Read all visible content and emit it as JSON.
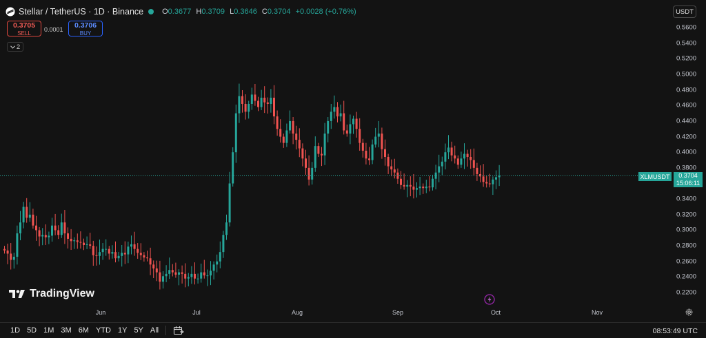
{
  "header": {
    "title": "Stellar / TetherUS · 1D · Binance",
    "ohlc": {
      "o_label": "O",
      "o_value": "0.3677",
      "h_label": "H",
      "h_value": "0.3709",
      "l_label": "L",
      "l_value": "0.3646",
      "c_label": "C",
      "c_value": "0.3704",
      "change": "+0.0028 (+0.76%)"
    }
  },
  "trade": {
    "sell_price": "0.3705",
    "sell_label": "SELL",
    "spread": "0.0001",
    "buy_price": "0.3706",
    "buy_label": "BUY"
  },
  "indicators_toggle": "2",
  "currency_button": "USDT",
  "price_axis": [
    "0.5600",
    "0.5400",
    "0.5200",
    "0.5000",
    "0.4800",
    "0.4600",
    "0.4400",
    "0.4200",
    "0.4000",
    "0.3800",
    "0.3400",
    "0.3200",
    "0.3000",
    "0.2800",
    "0.2600",
    "0.2400",
    "0.2200"
  ],
  "time_axis": [
    "Jun",
    "Jul",
    "Aug",
    "Sep",
    "Oct",
    "Nov"
  ],
  "last_price": {
    "symbol": "XLMUSDT",
    "price": "0.3704",
    "countdown": "15:06:11"
  },
  "watermark": "TradingView",
  "timeframes": [
    "1D",
    "5D",
    "1M",
    "3M",
    "6M",
    "YTD",
    "1Y",
    "5Y",
    "All"
  ],
  "clock": "08:53:49 UTC",
  "colors": {
    "up": "#26a69a",
    "down": "#ef5350",
    "background": "#131313"
  },
  "icons": {
    "calendar": "calendar-icon",
    "settings": "gear-icon",
    "event": "lightning-icon"
  },
  "chart_data": {
    "type": "candlestick",
    "symbol": "XLMUSDT",
    "interval": "1D",
    "ylim": [
      0.21,
      0.57
    ],
    "x_ticks": [
      "Jun",
      "Jul",
      "Aug",
      "Sep",
      "Oct",
      "Nov"
    ],
    "closes": [
      0.274,
      0.27,
      0.262,
      0.266,
      0.296,
      0.31,
      0.33,
      0.316,
      0.32,
      0.306,
      0.3,
      0.292,
      0.294,
      0.291,
      0.293,
      0.306,
      0.3,
      0.294,
      0.31,
      0.296,
      0.289,
      0.286,
      0.287,
      0.285,
      0.284,
      0.281,
      0.282,
      0.28,
      0.268,
      0.267,
      0.272,
      0.276,
      0.276,
      0.27,
      0.272,
      0.264,
      0.267,
      0.271,
      0.269,
      0.279,
      0.282,
      0.276,
      0.271,
      0.268,
      0.265,
      0.264,
      0.256,
      0.251,
      0.246,
      0.234,
      0.241,
      0.244,
      0.249,
      0.246,
      0.243,
      0.246,
      0.244,
      0.238,
      0.24,
      0.244,
      0.238,
      0.238,
      0.246,
      0.242,
      0.242,
      0.248,
      0.256,
      0.26,
      0.272,
      0.294,
      0.31,
      0.36,
      0.4,
      0.45,
      0.472,
      0.462,
      0.452,
      0.462,
      0.474,
      0.466,
      0.458,
      0.47,
      0.464,
      0.462,
      0.47,
      0.446,
      0.43,
      0.42,
      0.412,
      0.428,
      0.44,
      0.424,
      0.416,
      0.405,
      0.392,
      0.38,
      0.365,
      0.38,
      0.408,
      0.398,
      0.396,
      0.424,
      0.44,
      0.452,
      0.458,
      0.446,
      0.45,
      0.428,
      0.424,
      0.436,
      0.443,
      0.43,
      0.412,
      0.402,
      0.392,
      0.39,
      0.41,
      0.42,
      0.424,
      0.404,
      0.394,
      0.382,
      0.378,
      0.374,
      0.366,
      0.358,
      0.356,
      0.358,
      0.356,
      0.352,
      0.354,
      0.356,
      0.354,
      0.356,
      0.355,
      0.366,
      0.374,
      0.382,
      0.388,
      0.4,
      0.406,
      0.396,
      0.392,
      0.384,
      0.392,
      0.398,
      0.394,
      0.39,
      0.38,
      0.372,
      0.369,
      0.362,
      0.36,
      0.359,
      0.365,
      0.368,
      0.37
    ]
  }
}
